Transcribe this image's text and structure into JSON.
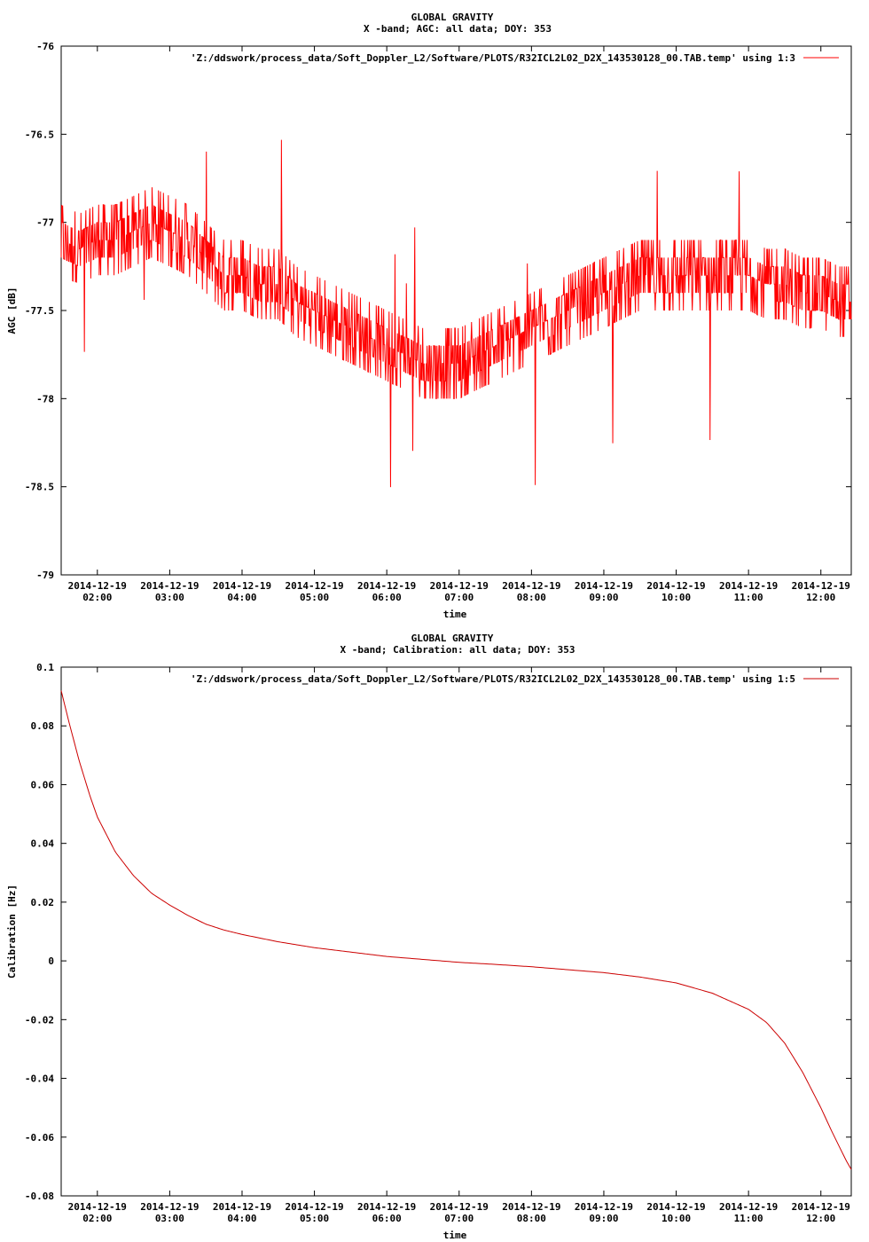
{
  "chart_data": [
    {
      "type": "line",
      "title": "GLOBAL GRAVITY",
      "subtitle": "X -band; AGC: all data; DOY: 353",
      "xlabel": "time",
      "ylabel": "AGC [dB]",
      "ylim": [
        -79,
        -76
      ],
      "y_ticks": [
        "-76",
        "-76.5",
        "-77",
        "-77.5",
        "-78",
        "-78.5",
        "-79"
      ],
      "y_tick_values": [
        -76,
        -76.5,
        -77,
        -77.5,
        -78,
        -78.5,
        -79
      ],
      "xlim": [
        1.5,
        12.42
      ],
      "x_ticks": [
        {
          "value": 2,
          "date": "2014-12-19",
          "time": "02:00"
        },
        {
          "value": 3,
          "date": "2014-12-19",
          "time": "03:00"
        },
        {
          "value": 4,
          "date": "2014-12-19",
          "time": "04:00"
        },
        {
          "value": 5,
          "date": "2014-12-19",
          "time": "05:00"
        },
        {
          "value": 6,
          "date": "2014-12-19",
          "time": "06:00"
        },
        {
          "value": 7,
          "date": "2014-12-19",
          "time": "07:00"
        },
        {
          "value": 8,
          "date": "2014-12-19",
          "time": "08:00"
        },
        {
          "value": 9,
          "date": "2014-12-19",
          "time": "09:00"
        },
        {
          "value": 10,
          "date": "2014-12-19",
          "time": "10:00"
        },
        {
          "value": 11,
          "date": "2014-12-19",
          "time": "11:00"
        },
        {
          "value": 12,
          "date": "2014-12-19",
          "time": "12:00"
        }
      ],
      "legend": "'Z:/ddswork/process_data/Soft_Doppler_L2/Software/PLOTS/R32ICL2L02_D2X_143530128_00.TAB.temp' using 1:3",
      "legend_position": "top-right",
      "color": "#ff0000",
      "series": [
        {
          "x": [
            1.5,
            1.75,
            2.0,
            2.25,
            2.5,
            2.75,
            3.0,
            3.25,
            3.5,
            3.75,
            4.0,
            4.25,
            4.5,
            4.75,
            5.0,
            5.25,
            5.5,
            5.75,
            6.0,
            6.25,
            6.5,
            6.75,
            7.0,
            7.25,
            7.5,
            7.75,
            8.0,
            8.25,
            8.5,
            8.75,
            9.0,
            9.25,
            9.5,
            9.75,
            10.0,
            10.25,
            10.5,
            10.75,
            11.0,
            11.25,
            11.5,
            11.75,
            12.0,
            12.25,
            12.42
          ],
          "y": [
            -77.1,
            -77.15,
            -77.1,
            -77.1,
            -77.05,
            -77.0,
            -77.05,
            -77.1,
            -77.2,
            -77.3,
            -77.3,
            -77.35,
            -77.35,
            -77.45,
            -77.5,
            -77.55,
            -77.6,
            -77.65,
            -77.7,
            -77.75,
            -77.8,
            -77.8,
            -77.8,
            -77.75,
            -77.7,
            -77.65,
            -77.6,
            -77.55,
            -77.5,
            -77.45,
            -77.4,
            -77.35,
            -77.3,
            -77.3,
            -77.3,
            -77.3,
            -77.3,
            -77.3,
            -77.3,
            -77.35,
            -77.35,
            -77.4,
            -77.4,
            -77.45,
            -77.45
          ],
          "noise": 0.2
        }
      ]
    },
    {
      "type": "line",
      "title": "GLOBAL GRAVITY",
      "subtitle": "X -band; Calibration: all data; DOY: 353",
      "xlabel": "time",
      "ylabel": "Calibration [Hz]",
      "ylim": [
        -0.08,
        0.1
      ],
      "y_ticks": [
        "0.1",
        "0.08",
        "0.06",
        "0.04",
        "0.02",
        "0",
        "-0.02",
        "-0.04",
        "-0.06",
        "-0.08"
      ],
      "y_tick_values": [
        0.1,
        0.08,
        0.06,
        0.04,
        0.02,
        0,
        -0.02,
        -0.04,
        -0.06,
        -0.08
      ],
      "xlim": [
        1.5,
        12.42
      ],
      "x_ticks": [
        {
          "value": 2,
          "date": "2014-12-19",
          "time": "02:00"
        },
        {
          "value": 3,
          "date": "2014-12-19",
          "time": "03:00"
        },
        {
          "value": 4,
          "date": "2014-12-19",
          "time": "04:00"
        },
        {
          "value": 5,
          "date": "2014-12-19",
          "time": "05:00"
        },
        {
          "value": 6,
          "date": "2014-12-19",
          "time": "06:00"
        },
        {
          "value": 7,
          "date": "2014-12-19",
          "time": "07:00"
        },
        {
          "value": 8,
          "date": "2014-12-19",
          "time": "08:00"
        },
        {
          "value": 9,
          "date": "2014-12-19",
          "time": "09:00"
        },
        {
          "value": 10,
          "date": "2014-12-19",
          "time": "10:00"
        },
        {
          "value": 11,
          "date": "2014-12-19",
          "time": "11:00"
        },
        {
          "value": 12,
          "date": "2014-12-19",
          "time": "12:00"
        }
      ],
      "legend": "'Z:/ddswork/process_data/Soft_Doppler_L2/Software/PLOTS/R32ICL2L02_D2X_143530128_00.TAB.temp' using 1:5",
      "legend_position": "top-right",
      "color": "#cc0000",
      "series": [
        {
          "x": [
            1.5,
            1.6,
            1.75,
            1.9,
            2.0,
            2.25,
            2.5,
            2.75,
            3.0,
            3.25,
            3.5,
            3.75,
            4.0,
            4.5,
            5.0,
            5.5,
            6.0,
            6.5,
            7.0,
            7.5,
            8.0,
            8.5,
            9.0,
            9.5,
            10.0,
            10.5,
            11.0,
            11.25,
            11.5,
            11.75,
            12.0,
            12.15,
            12.25,
            12.35,
            12.42
          ],
          "y": [
            0.092,
            0.082,
            0.068,
            0.056,
            0.049,
            0.037,
            0.029,
            0.023,
            0.019,
            0.0155,
            0.0125,
            0.0105,
            0.009,
            0.0065,
            0.0045,
            0.003,
            0.0015,
            0.0005,
            -0.0005,
            -0.0012,
            -0.002,
            -0.003,
            -0.004,
            -0.0055,
            -0.0075,
            -0.011,
            -0.0165,
            -0.021,
            -0.028,
            -0.038,
            -0.05,
            -0.058,
            -0.063,
            -0.068,
            -0.071
          ]
        }
      ]
    }
  ]
}
